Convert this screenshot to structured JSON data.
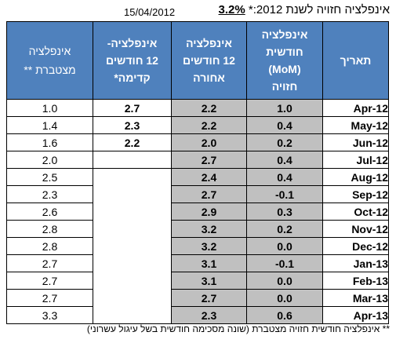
{
  "header": {
    "date": "15/04/2012",
    "title_text": "אינפלציה חזויה לשנת 2012:*",
    "title_pct": "3.2%"
  },
  "columns": {
    "cumulative": [
      "אינפלציה",
      "מצטברת **"
    ],
    "forward12": [
      "אינפלציה-",
      "12 חודשים",
      "קדימה*"
    ],
    "back12": [
      "אינפלציה",
      "12 חודשים",
      "אחורה"
    ],
    "mom": [
      "אינפלציה",
      "חודשית",
      "(MoM)",
      "חזויה"
    ],
    "date": [
      "תאריך"
    ]
  },
  "rows": [
    {
      "date": "Apr-12",
      "mom": "1.0",
      "back12": "2.2",
      "forward12": "2.7",
      "cumulative": "1.0"
    },
    {
      "date": "May-12",
      "mom": "0.4",
      "back12": "2.2",
      "forward12": "2.3",
      "cumulative": "1.4"
    },
    {
      "date": "Jun-12",
      "mom": "0.2",
      "back12": "2.0",
      "forward12": "2.2",
      "cumulative": "1.6"
    },
    {
      "date": "Jul-12",
      "mom": "0.4",
      "back12": "2.7",
      "forward12": "",
      "cumulative": "2.0"
    },
    {
      "date": "Aug-12",
      "mom": "0.4",
      "back12": "2.4",
      "forward12": "",
      "cumulative": "2.5"
    },
    {
      "date": "Sep-12",
      "mom": "-0.1",
      "back12": "2.7",
      "forward12": "",
      "cumulative": "2.3"
    },
    {
      "date": "Oct-12",
      "mom": "0.3",
      "back12": "2.9",
      "forward12": "",
      "cumulative": "2.6"
    },
    {
      "date": "Nov-12",
      "mom": "0.2",
      "back12": "3.2",
      "forward12": "",
      "cumulative": "2.8"
    },
    {
      "date": "Dec-12",
      "mom": "0.0",
      "back12": "3.2",
      "forward12": "",
      "cumulative": "2.8"
    },
    {
      "date": "Jan-13",
      "mom": "-0.1",
      "back12": "3.1",
      "forward12": "",
      "cumulative": "2.7"
    },
    {
      "date": "Feb-13",
      "mom": "0.0",
      "back12": "3.1",
      "forward12": "",
      "cumulative": "2.7"
    },
    {
      "date": "Mar-13",
      "mom": "0.0",
      "back12": "2.7",
      "forward12": "",
      "cumulative": "2.7"
    },
    {
      "date": "Apr-13",
      "mom": "0.6",
      "back12": "2.3",
      "forward12": "",
      "cumulative": "3.3"
    }
  ],
  "footnote": "** אינפלציה חודשית חזויה מצטברת (שונה מסכימה חודשית בשל עיגול עשרוני)"
}
